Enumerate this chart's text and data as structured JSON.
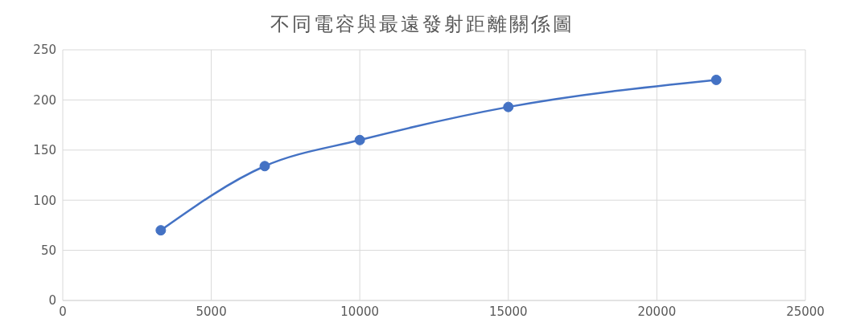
{
  "chart_data": {
    "type": "line",
    "title": "不同電容與最遠發射距離關係圖",
    "x": [
      3300,
      6800,
      10000,
      15000,
      22000
    ],
    "series": [
      {
        "color": "#4472c4",
        "values": [
          70,
          134,
          160,
          193,
          220
        ]
      }
    ],
    "xlim": [
      0,
      25000
    ],
    "xticks": [
      0,
      5000,
      10000,
      15000,
      20000,
      25000
    ],
    "ylim": [
      0,
      250
    ],
    "yticks": [
      0,
      50,
      100,
      150,
      200,
      250
    ],
    "grid": true,
    "marker": "circle",
    "line_style": "solid"
  }
}
